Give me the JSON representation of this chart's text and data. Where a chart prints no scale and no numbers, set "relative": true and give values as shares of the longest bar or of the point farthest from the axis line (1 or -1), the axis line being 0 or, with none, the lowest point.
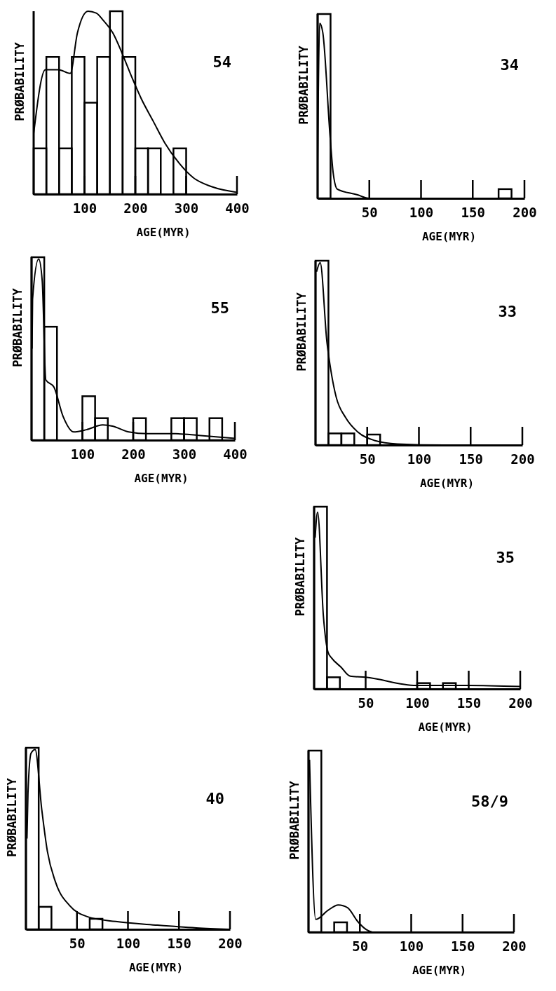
{
  "chart_data": [
    {
      "type": "histogram",
      "relative": true,
      "title": "54",
      "xlabel": "AGE(MYR)",
      "ylabel": "PRØBABILITY",
      "xlim": [
        0,
        400
      ],
      "xticks": [
        100,
        200,
        300,
        400
      ],
      "series": [
        {
          "color": "#000000",
          "bins": [
            0,
            25,
            50,
            75,
            100,
            125,
            150,
            175,
            200,
            225,
            250,
            275,
            300
          ],
          "values": [
            0.25,
            0.75,
            0.25,
            0.75,
            0.5,
            0.75,
            1.0,
            0.75,
            0.25,
            0.25,
            0,
            0.25
          ]
        },
        {
          "type": "line",
          "color": "#000000",
          "x": [
            0,
            23,
            49,
            72,
            86,
            107,
            123,
            137,
            156,
            174,
            193,
            212,
            235,
            258,
            286,
            314,
            351,
            400
          ],
          "values": [
            0.33,
            0.68,
            0.68,
            0.66,
            0.88,
            1.0,
            0.99,
            0.95,
            0.88,
            0.77,
            0.64,
            0.52,
            0.4,
            0.28,
            0.17,
            0.09,
            0.04,
            0.01
          ]
        }
      ]
    },
    {
      "type": "histogram",
      "relative": true,
      "title": "34",
      "xlabel": "AGE(MYR)",
      "ylabel": "PRØBABILITY",
      "xlim": [
        0,
        200
      ],
      "xticks": [
        50,
        100,
        150,
        200
      ],
      "series": [
        {
          "color": "#000000",
          "bins": [
            0,
            12.5,
            25,
            37.5,
            50,
            62.5,
            75,
            87.5,
            100,
            112.5,
            125,
            137.5,
            150,
            162.5,
            175,
            187.5
          ],
          "values": [
            1.0,
            0,
            0,
            0,
            0,
            0,
            0,
            0,
            0,
            0,
            0,
            0,
            0,
            0,
            0.05
          ]
        },
        {
          "type": "line",
          "color": "#000000",
          "x": [
            0,
            2,
            5,
            12,
            15,
            19,
            38,
            50,
            200
          ],
          "values": [
            0.2,
            0.95,
            0.9,
            0.34,
            0.14,
            0.05,
            0.02,
            0,
            0
          ]
        }
      ]
    },
    {
      "type": "histogram",
      "relative": true,
      "title": "55",
      "xlabel": "AGE(MYR)",
      "ylabel": "PRØBABILITY",
      "xlim": [
        0,
        400
      ],
      "xticks": [
        100,
        200,
        300,
        400
      ],
      "series": [
        {
          "color": "#000000",
          "bins": [
            0,
            25,
            50,
            75,
            100,
            125,
            150,
            175,
            200,
            225,
            250,
            275,
            300,
            325,
            350,
            375
          ],
          "values": [
            1.0,
            0.62,
            0,
            0,
            0.24,
            0.12,
            0,
            0,
            0.12,
            0,
            0,
            0.12,
            0.12,
            0,
            0.12
          ]
        },
        {
          "type": "line",
          "color": "#000000",
          "x": [
            1,
            2,
            14,
            21,
            28,
            44,
            62,
            83,
            108,
            140,
            159,
            191,
            228,
            283,
            329,
            400
          ],
          "values": [
            0.5,
            0.77,
            0.99,
            0.87,
            0.33,
            0.29,
            0.13,
            0.045,
            0.057,
            0.083,
            0.077,
            0.045,
            0.035,
            0.035,
            0.026,
            0.01
          ]
        }
      ]
    },
    {
      "type": "histogram",
      "relative": true,
      "title": "33",
      "xlabel": "AGE(MYR)",
      "ylabel": "PRØBABILITY",
      "xlim": [
        0,
        200
      ],
      "xticks": [
        50,
        100,
        150,
        200
      ],
      "series": [
        {
          "color": "#000000",
          "bins": [
            0,
            12.5,
            25,
            37.5,
            50,
            62.5
          ],
          "values": [
            1.0,
            0.063,
            0.063,
            0,
            0.057
          ]
        },
        {
          "type": "line",
          "color": "#000000",
          "x": [
            1,
            4.5,
            11,
            15,
            20,
            29,
            41,
            57,
            79,
            124,
            200
          ],
          "values": [
            0.94,
            0.99,
            0.56,
            0.4,
            0.26,
            0.15,
            0.07,
            0.025,
            0.006,
            0,
            0
          ]
        }
      ]
    },
    {
      "type": "histogram",
      "relative": true,
      "title": "35",
      "xlabel": "AGE(MYR)",
      "ylabel": "PRØBABILITY",
      "xlim": [
        0,
        200
      ],
      "xticks": [
        50,
        100,
        150,
        200
      ],
      "series": [
        {
          "color": "#000000",
          "bins": [
            0,
            12.5,
            25,
            37.5,
            50,
            62.5,
            75,
            87.5,
            100,
            112.5,
            125,
            137.5
          ],
          "values": [
            1.0,
            0.064,
            0,
            0,
            0,
            0,
            0,
            0,
            0.032,
            0,
            0.032
          ]
        },
        {
          "type": "line",
          "color": "#000000",
          "x": [
            1,
            3.4,
            9,
            13.6,
            17,
            26,
            35,
            50,
            99,
            149,
            200
          ],
          "values": [
            0.83,
            0.97,
            0.4,
            0.2,
            0.17,
            0.12,
            0.07,
            0.064,
            0.019,
            0.019,
            0.013
          ]
        }
      ]
    },
    {
      "type": "histogram",
      "relative": true,
      "title": "40",
      "xlabel": "AGE(MYR)",
      "ylabel": "PRØBABILITY",
      "xlim": [
        0,
        200
      ],
      "xticks": [
        50,
        100,
        150,
        200
      ],
      "series": [
        {
          "color": "#000000",
          "bins": [
            0,
            12.5,
            25,
            37.5,
            50,
            62.5,
            75
          ],
          "values": [
            1.0,
            0.124,
            0,
            0,
            0,
            0.058
          ]
        },
        {
          "type": "line",
          "color": "#000000",
          "x": [
            1,
            2,
            5,
            9,
            15.5,
            21,
            29,
            43,
            60,
            88,
            129,
            167,
            200
          ],
          "values": [
            0.5,
            0.75,
            0.97,
            0.99,
            0.66,
            0.43,
            0.26,
            0.13,
            0.07,
            0.043,
            0.023,
            0.008,
            0
          ]
        }
      ]
    },
    {
      "type": "histogram",
      "relative": true,
      "title": "58/9",
      "xlabel": "AGE(MYR)",
      "ylabel": "PRØBABILITY",
      "xlim": [
        0,
        200
      ],
      "xticks": [
        50,
        100,
        150,
        200
      ],
      "series": [
        {
          "color": "#000000",
          "bins": [
            0,
            12.5,
            25,
            37.5
          ],
          "values": [
            1.0,
            0,
            0.054
          ]
        },
        {
          "type": "line",
          "color": "#000000",
          "x": [
            1,
            7,
            19,
            29,
            38,
            48,
            56,
            62
          ],
          "values": [
            0.95,
            0.07,
            0.12,
            0.15,
            0.135,
            0.058,
            0.015,
            0
          ]
        }
      ]
    }
  ]
}
